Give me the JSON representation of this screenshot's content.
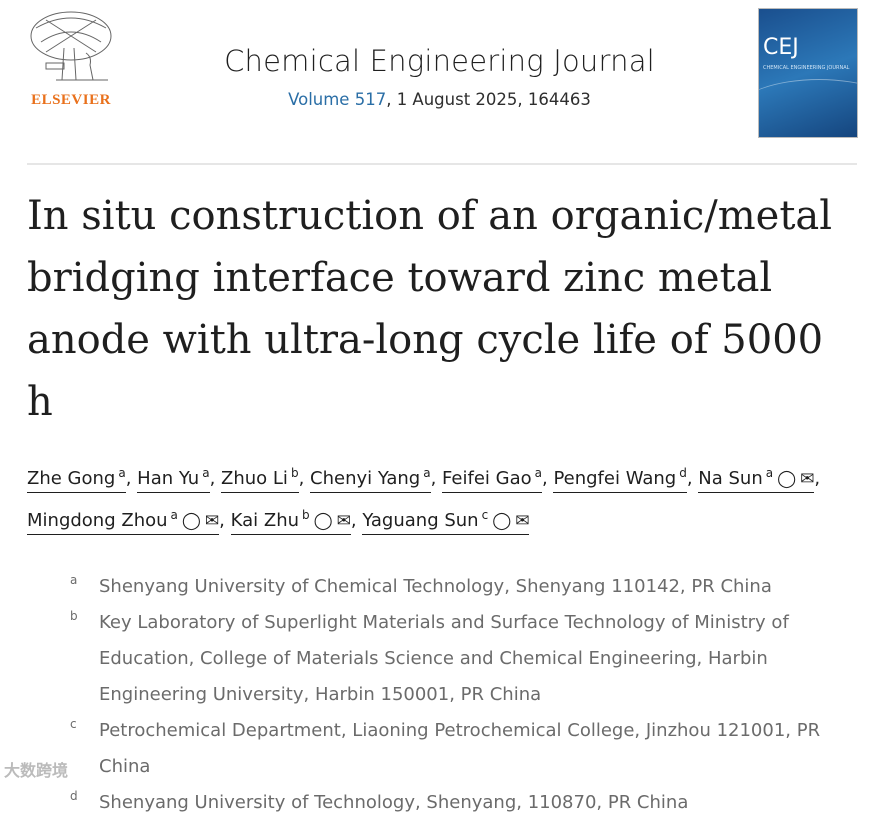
{
  "header": {
    "publisher": "ELSEVIER",
    "journal_name": "Chemical Engineering Journal",
    "volume_link": "Volume 517",
    "volume_rest": ", 1 August 2025, 164463",
    "cover_text": "CEJ",
    "cover_subtitle": "CHEMICAL ENGINEERING JOURNAL"
  },
  "article": {
    "title": "In situ construction of an organic/metal bridging interface toward zinc metal anode with ultra-long cycle life of 5000 h"
  },
  "authors": [
    {
      "name": "Zhe Gong",
      "sup": "a",
      "contact": false
    },
    {
      "name": "Han Yu",
      "sup": "a",
      "contact": false
    },
    {
      "name": "Zhuo Li",
      "sup": "b",
      "contact": false
    },
    {
      "name": "Chenyi Yang",
      "sup": "a",
      "contact": false
    },
    {
      "name": "Feifei Gao",
      "sup": "a",
      "contact": false
    },
    {
      "name": "Pengfei Wang",
      "sup": "d",
      "contact": false
    },
    {
      "name": "Na Sun",
      "sup": "a",
      "contact": true
    },
    {
      "name": "Mingdong Zhou",
      "sup": "a",
      "contact": true
    },
    {
      "name": "Kai Zhu",
      "sup": "b",
      "contact": true
    },
    {
      "name": "Yaguang Sun",
      "sup": "c",
      "contact": true
    }
  ],
  "icons": {
    "person": "person-icon",
    "email": "email-icon"
  },
  "affiliations": [
    {
      "label": "a",
      "text": "Shenyang University of Chemical Technology, Shenyang 110142, PR China"
    },
    {
      "label": "b",
      "text": "Key Laboratory of Superlight Materials and Surface Technology of Ministry of Education, College of Materials Science and Chemical Engineering, Harbin Engineering University, Harbin 150001, PR China"
    },
    {
      "label": "c",
      "text": "Petrochemical Department, Liaoning Petrochemical College, Jinzhou 121001, PR China"
    },
    {
      "label": "d",
      "text": "Shenyang University of Technology, Shenyang, 110870, PR China"
    }
  ],
  "watermark": "大数跨境",
  "colors": {
    "publisher": "#e9711c",
    "link": "#2a6ea6"
  }
}
